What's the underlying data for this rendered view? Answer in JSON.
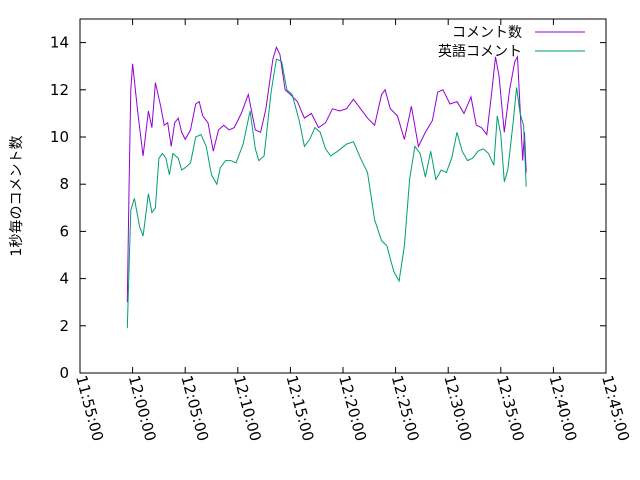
{
  "chart_data": {
    "type": "line",
    "title": "",
    "xlabel": "",
    "ylabel": "1秒毎のコメント数",
    "xlim": [
      "11:55:00",
      "12:45:00"
    ],
    "ylim": [
      0,
      15
    ],
    "xticks": [
      "11:55:00",
      "12:00:00",
      "12:05:00",
      "12:10:00",
      "12:15:00",
      "12:20:00",
      "12:25:00",
      "12:30:00",
      "12:35:00",
      "12:40:00",
      "12:45:00"
    ],
    "yticks": [
      0,
      2,
      4,
      6,
      8,
      10,
      12,
      14
    ],
    "legend_position": "top-right",
    "grid": false,
    "series": [
      {
        "name": "コメント数",
        "color": "#9400d3",
        "points": [
          [
            "11:59:30",
            3.0
          ],
          [
            "11:59:40",
            8.0
          ],
          [
            "11:59:50",
            12.0
          ],
          [
            "12:00:00",
            13.1
          ],
          [
            "12:00:30",
            11.0
          ],
          [
            "12:01:00",
            9.2
          ],
          [
            "12:01:30",
            11.1
          ],
          [
            "12:01:50",
            10.4
          ],
          [
            "12:02:10",
            12.3
          ],
          [
            "12:02:40",
            11.3
          ],
          [
            "12:03:00",
            10.5
          ],
          [
            "12:03:20",
            10.6
          ],
          [
            "12:03:40",
            9.6
          ],
          [
            "12:04:00",
            10.6
          ],
          [
            "12:04:20",
            10.8
          ],
          [
            "12:04:40",
            10.2
          ],
          [
            "12:05:00",
            9.9
          ],
          [
            "12:05:30",
            10.3
          ],
          [
            "12:06:00",
            11.4
          ],
          [
            "12:06:20",
            11.5
          ],
          [
            "12:06:40",
            10.9
          ],
          [
            "12:07:10",
            10.6
          ],
          [
            "12:07:40",
            9.4
          ],
          [
            "12:08:10",
            10.3
          ],
          [
            "12:08:40",
            10.5
          ],
          [
            "12:09:10",
            10.3
          ],
          [
            "12:09:40",
            10.4
          ],
          [
            "12:10:20",
            11.0
          ],
          [
            "12:11:00",
            11.8
          ],
          [
            "12:11:40",
            10.3
          ],
          [
            "12:12:10",
            10.2
          ],
          [
            "12:12:40",
            11.2
          ],
          [
            "12:13:20",
            13.3
          ],
          [
            "12:13:40",
            13.8
          ],
          [
            "12:14:00",
            13.5
          ],
          [
            "12:14:30",
            12.0
          ],
          [
            "12:15:00",
            11.8
          ],
          [
            "12:15:40",
            11.5
          ],
          [
            "12:16:20",
            10.8
          ],
          [
            "12:17:00",
            11.0
          ],
          [
            "12:17:40",
            10.4
          ],
          [
            "12:18:20",
            10.6
          ],
          [
            "12:19:00",
            11.2
          ],
          [
            "12:19:40",
            11.1
          ],
          [
            "12:20:20",
            11.2
          ],
          [
            "12:21:00",
            11.6
          ],
          [
            "12:21:40",
            11.2
          ],
          [
            "12:22:20",
            10.8
          ],
          [
            "12:23:00",
            10.5
          ],
          [
            "12:23:40",
            11.8
          ],
          [
            "12:24:00",
            12.0
          ],
          [
            "12:24:30",
            11.2
          ],
          [
            "12:25:10",
            10.9
          ],
          [
            "12:25:50",
            9.9
          ],
          [
            "12:26:30",
            11.3
          ],
          [
            "12:27:10",
            9.6
          ],
          [
            "12:27:50",
            10.2
          ],
          [
            "12:28:30",
            10.7
          ],
          [
            "12:29:00",
            11.9
          ],
          [
            "12:29:30",
            12.0
          ],
          [
            "12:30:10",
            11.4
          ],
          [
            "12:30:50",
            11.5
          ],
          [
            "12:31:30",
            11.0
          ],
          [
            "12:32:10",
            11.7
          ],
          [
            "12:32:40",
            10.5
          ],
          [
            "12:33:10",
            10.4
          ],
          [
            "12:33:40",
            10.1
          ],
          [
            "12:34:10",
            12.0
          ],
          [
            "12:34:30",
            13.4
          ],
          [
            "12:34:50",
            12.6
          ],
          [
            "12:35:20",
            10.2
          ],
          [
            "12:35:50",
            12.0
          ],
          [
            "12:36:20",
            13.2
          ],
          [
            "12:36:35",
            13.4
          ],
          [
            "12:36:50",
            11.2
          ],
          [
            "12:37:05",
            9.0
          ],
          [
            "12:37:15",
            10.2
          ],
          [
            "12:37:25",
            8.5
          ]
        ]
      },
      {
        "name": "英語コメント",
        "color": "#009e73",
        "points": [
          [
            "11:59:30",
            1.9
          ],
          [
            "11:59:40",
            4.5
          ],
          [
            "11:59:50",
            6.9
          ],
          [
            "12:00:10",
            7.4
          ],
          [
            "12:00:40",
            6.2
          ],
          [
            "12:01:00",
            5.8
          ],
          [
            "12:01:30",
            7.6
          ],
          [
            "12:01:50",
            6.8
          ],
          [
            "12:02:10",
            7.0
          ],
          [
            "12:02:30",
            9.1
          ],
          [
            "12:02:50",
            9.3
          ],
          [
            "12:03:10",
            9.1
          ],
          [
            "12:03:30",
            8.4
          ],
          [
            "12:03:50",
            9.3
          ],
          [
            "12:04:20",
            9.1
          ],
          [
            "12:04:40",
            8.6
          ],
          [
            "12:05:00",
            8.7
          ],
          [
            "12:05:30",
            8.9
          ],
          [
            "12:06:00",
            10.0
          ],
          [
            "12:06:30",
            10.1
          ],
          [
            "12:07:00",
            9.6
          ],
          [
            "12:07:30",
            8.4
          ],
          [
            "12:08:00",
            8.0
          ],
          [
            "12:08:20",
            8.7
          ],
          [
            "12:08:50",
            9.0
          ],
          [
            "12:09:20",
            9.0
          ],
          [
            "12:09:50",
            8.9
          ],
          [
            "12:10:30",
            9.7
          ],
          [
            "12:11:10",
            11.1
          ],
          [
            "12:11:40",
            9.5
          ],
          [
            "12:12:00",
            9.0
          ],
          [
            "12:12:30",
            9.2
          ],
          [
            "12:13:10",
            11.9
          ],
          [
            "12:13:40",
            13.3
          ],
          [
            "12:14:10",
            13.2
          ],
          [
            "12:14:40",
            12.0
          ],
          [
            "12:15:10",
            11.8
          ],
          [
            "12:15:50",
            10.7
          ],
          [
            "12:16:20",
            9.6
          ],
          [
            "12:16:50",
            9.9
          ],
          [
            "12:17:20",
            10.4
          ],
          [
            "12:17:50",
            10.2
          ],
          [
            "12:18:20",
            9.5
          ],
          [
            "12:18:50",
            9.2
          ],
          [
            "12:19:30",
            9.4
          ],
          [
            "12:20:20",
            9.7
          ],
          [
            "12:21:00",
            9.8
          ],
          [
            "12:21:40",
            9.1
          ],
          [
            "12:22:20",
            8.5
          ],
          [
            "12:23:00",
            6.5
          ],
          [
            "12:23:40",
            5.6
          ],
          [
            "12:24:10",
            5.4
          ],
          [
            "12:24:50",
            4.3
          ],
          [
            "12:25:20",
            3.9
          ],
          [
            "12:25:50",
            5.4
          ],
          [
            "12:26:20",
            8.2
          ],
          [
            "12:26:50",
            9.6
          ],
          [
            "12:27:20",
            9.3
          ],
          [
            "12:27:50",
            8.3
          ],
          [
            "12:28:20",
            9.4
          ],
          [
            "12:28:50",
            8.2
          ],
          [
            "12:29:20",
            8.6
          ],
          [
            "12:29:50",
            8.5
          ],
          [
            "12:30:20",
            9.1
          ],
          [
            "12:30:50",
            10.2
          ],
          [
            "12:31:20",
            9.4
          ],
          [
            "12:31:50",
            9.0
          ],
          [
            "12:32:20",
            9.1
          ],
          [
            "12:32:50",
            9.4
          ],
          [
            "12:33:20",
            9.5
          ],
          [
            "12:33:50",
            9.3
          ],
          [
            "12:34:20",
            8.8
          ],
          [
            "12:34:40",
            10.9
          ],
          [
            "12:35:00",
            10.1
          ],
          [
            "12:35:20",
            8.1
          ],
          [
            "12:35:40",
            8.6
          ],
          [
            "12:36:10",
            10.6
          ],
          [
            "12:36:30",
            12.1
          ],
          [
            "12:36:50",
            11.0
          ],
          [
            "12:37:10",
            10.5
          ],
          [
            "12:37:25",
            7.9
          ]
        ]
      }
    ]
  }
}
